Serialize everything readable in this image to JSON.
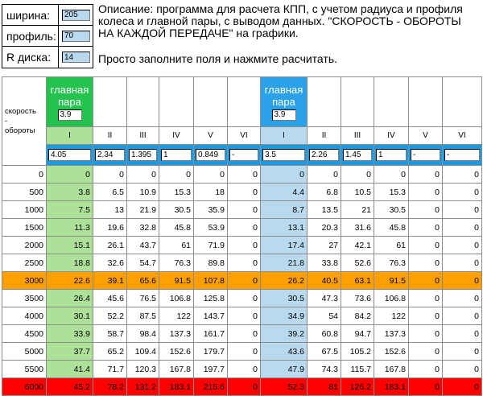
{
  "params": [
    {
      "label": "ширина:",
      "value": "205",
      "name": "width"
    },
    {
      "label": "профиль:",
      "value": "70",
      "name": "profile"
    },
    {
      "label": "R диска:",
      "value": "14",
      "name": "rim"
    }
  ],
  "description": {
    "text": "Описание: программа для расчета КПП, с учетом радиуса и профиля колеса и главной пары, с выводом данных. \"СКОРОСТЬ - ОБОРОТЫ НА КАЖДОЙ ПЕРЕДАЧЕ\" на графики.",
    "hint": "Просто заполните поля и нажмите расчитать."
  },
  "table": {
    "row_label": "скорость\n-\nобороты",
    "main_pair_label": "главная\nпара",
    "gears": [
      "I",
      "II",
      "III",
      "IV",
      "V",
      "VI"
    ],
    "box1": {
      "main_pair": "3.9",
      "ratios": [
        "4.05",
        "2.34",
        "1.395",
        "1",
        "0.849",
        "-"
      ]
    },
    "box2": {
      "main_pair": "3.9",
      "ratios": [
        "3.5",
        "2.26",
        "1.45",
        "1",
        "-",
        "-"
      ]
    },
    "rows": [
      {
        "rpm": "0",
        "b1": [
          "0",
          "0",
          "0",
          "0",
          "0",
          "0"
        ],
        "b2": [
          "0",
          "0",
          "0",
          "0",
          "0",
          "0"
        ],
        "style": ""
      },
      {
        "rpm": "500",
        "b1": [
          "3.8",
          "6.5",
          "10.9",
          "15.3",
          "18",
          "0"
        ],
        "b2": [
          "4.4",
          "6.8",
          "10.5",
          "15.3",
          "0",
          "0"
        ],
        "style": ""
      },
      {
        "rpm": "1000",
        "b1": [
          "7.5",
          "13",
          "21.9",
          "30.5",
          "35.9",
          "0"
        ],
        "b2": [
          "8.7",
          "13.5",
          "21",
          "30.5",
          "0",
          "0"
        ],
        "style": ""
      },
      {
        "rpm": "1500",
        "b1": [
          "11.3",
          "19.6",
          "32.8",
          "45.8",
          "53.9",
          "0"
        ],
        "b2": [
          "13.1",
          "20.3",
          "31.6",
          "45.8",
          "0",
          "0"
        ],
        "style": ""
      },
      {
        "rpm": "2000",
        "b1": [
          "15.1",
          "26.1",
          "43.7",
          "61",
          "71.9",
          "0"
        ],
        "b2": [
          "17.4",
          "27",
          "42.1",
          "61",
          "0",
          "0"
        ],
        "style": ""
      },
      {
        "rpm": "2500",
        "b1": [
          "18.8",
          "32.6",
          "54.7",
          "76.3",
          "89.8",
          "0"
        ],
        "b2": [
          "21.8",
          "33.8",
          "52.6",
          "76.3",
          "0",
          "0"
        ],
        "style": ""
      },
      {
        "rpm": "3000",
        "b1": [
          "22.6",
          "39.1",
          "65.6",
          "91.5",
          "107.8",
          "0"
        ],
        "b2": [
          "26.2",
          "40.5",
          "63.1",
          "91.5",
          "0",
          "0"
        ],
        "style": "orange"
      },
      {
        "rpm": "3500",
        "b1": [
          "26.4",
          "45.6",
          "76.5",
          "106.8",
          "125.8",
          "0"
        ],
        "b2": [
          "30.5",
          "47.3",
          "73.6",
          "106.8",
          "0",
          "0"
        ],
        "style": ""
      },
      {
        "rpm": "4000",
        "b1": [
          "30.1",
          "52.2",
          "87.5",
          "122",
          "143.7",
          "0"
        ],
        "b2": [
          "34.9",
          "54",
          "84.2",
          "122",
          "0",
          "0"
        ],
        "style": ""
      },
      {
        "rpm": "4500",
        "b1": [
          "33.9",
          "58.7",
          "98.4",
          "137.3",
          "161.7",
          "0"
        ],
        "b2": [
          "39.2",
          "60.8",
          "94.7",
          "137.3",
          "0",
          "0"
        ],
        "style": ""
      },
      {
        "rpm": "5000",
        "b1": [
          "37.7",
          "65.2",
          "109.4",
          "152.6",
          "179.7",
          "0"
        ],
        "b2": [
          "43.6",
          "67.5",
          "105.2",
          "152.6",
          "0",
          "0"
        ],
        "style": ""
      },
      {
        "rpm": "5500",
        "b1": [
          "41.4",
          "71.7",
          "120.3",
          "167.8",
          "197.7",
          "0"
        ],
        "b2": [
          "47.9",
          "74.3",
          "115.7",
          "167.8",
          "0",
          "0"
        ],
        "style": ""
      },
      {
        "rpm": "6000",
        "b1": [
          "45.2",
          "78.2",
          "131.2",
          "183.1",
          "215.6",
          "0"
        ],
        "b2": [
          "52.3",
          "81",
          "126.2",
          "183.1",
          "0",
          "0"
        ],
        "style": "red"
      }
    ]
  },
  "colors": {
    "main_pair_1": "#23c34e",
    "main_pair_2": "#2aa1e8",
    "gear1_col_1": "#ade098",
    "gear1_col_2": "#b9d9ef",
    "ratio_row": "#1a9ae0",
    "row_3000": "#ffa000",
    "row_6000": "#ff0000"
  }
}
